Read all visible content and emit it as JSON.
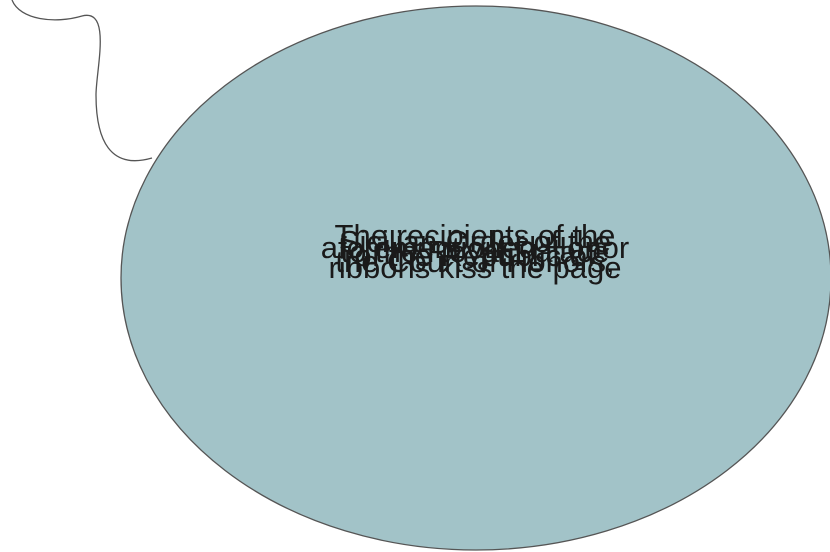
{
  "colors": {
    "bubble_fill": "#a2c3c8",
    "bubble_stroke": "#555555",
    "connector_stroke": "#555555",
    "text": "#1a1a1a",
    "background": "#ffffff"
  },
  "bubble": {
    "text_lines": [
      "The recipients of the",
      "Sicilian Order of the",
      "aforementioned Honor",
      "to the Royal Palace",
      "of the Republic of",
      "the Court of Honors,",
      "ribbons kiss the page"
    ]
  }
}
